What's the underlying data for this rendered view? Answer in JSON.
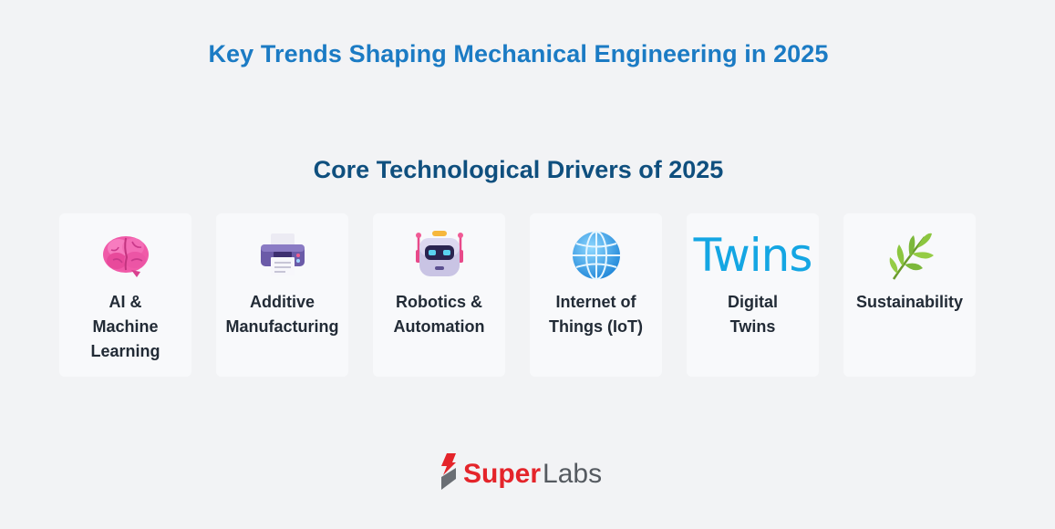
{
  "header": {
    "title": "Key Trends Shaping Mechanical Engineering in 2025"
  },
  "section": {
    "title": "Core Technological Drivers of 2025"
  },
  "cards": [
    {
      "icon": "brain-icon",
      "label": "AI &\nMachine\nLearning"
    },
    {
      "icon": "printer-icon",
      "label": "Additive\nManufacturing"
    },
    {
      "icon": "robot-icon",
      "label": "Robotics &\nAutomation"
    },
    {
      "icon": "globe-icon",
      "label": "Internet of\nThings (IoT)"
    },
    {
      "icon": "twins-text-icon",
      "icon_text": "Twins",
      "label": "Digital\nTwins"
    },
    {
      "icon": "herb-icon",
      "label": "Sustainability"
    }
  ],
  "logo": {
    "brand_primary": "Super",
    "brand_secondary": "Labs"
  },
  "colors": {
    "title": "#1b7bc4",
    "section_title": "#0f4f7e",
    "background": "#f2f3f5",
    "card": "#f8f9fb",
    "logo_red": "#e4242a",
    "logo_gray": "#555a60"
  }
}
